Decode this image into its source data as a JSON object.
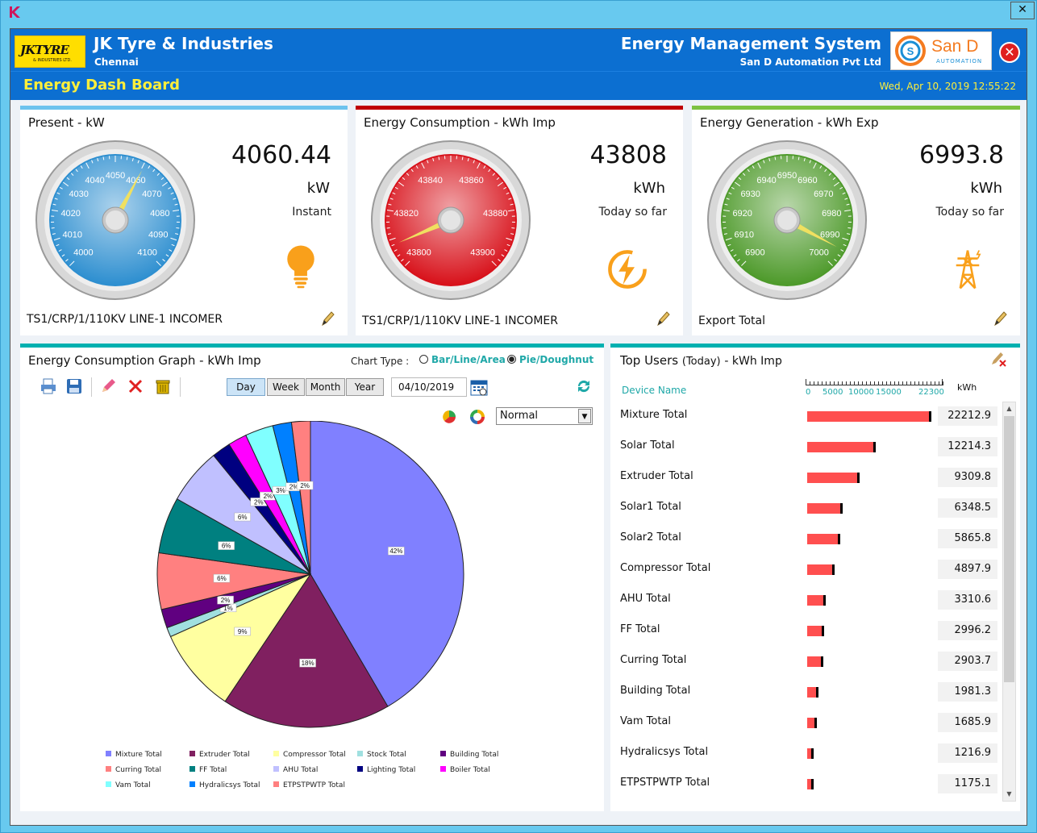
{
  "window": {
    "app_icon": "k-logo-icon",
    "close_label": "✕"
  },
  "header": {
    "company": "JK Tyre & Industries",
    "city": "Chennai",
    "logo_text": "JKTYRE",
    "logo_sub": "& INDUSTRIES LTD.",
    "system_title": "Energy Management System",
    "vendor": "San D Automation Pvt Ltd",
    "vendor_logo_text": "San D",
    "vendor_logo_sub": "AUTOMATION",
    "dashboard_title": "Energy Dash Board",
    "datetime": "Wed, Apr 10, 2019 12:55:22"
  },
  "cards": [
    {
      "title": "Present - kW",
      "value": "4060.44",
      "unit": "kW",
      "note": "Instant",
      "footer": "TS1/CRP/1/110KV LINE-1 INCOMER",
      "icon": "lightbulb-icon",
      "accent": "#6cc3ee",
      "gauge": {
        "color": "#2e8fd0",
        "min": 4000,
        "max": 4100,
        "ticks": [
          "4000",
          "4010",
          "4020",
          "4030",
          "4040",
          "4050",
          "4060",
          "4070",
          "4080",
          "4090",
          "4100"
        ],
        "value": 4060.44
      }
    },
    {
      "title": "Energy Consumption - kWh Imp",
      "value": "43808",
      "unit": "kWh",
      "note": "Today so far",
      "footer": "TS1/CRP/1/110KV LINE-1 INCOMER",
      "icon": "lightning-icon",
      "accent": "#c00000",
      "gauge": {
        "color": "#d8121b",
        "min": 43800,
        "max": 43900,
        "ticks": [
          "43800",
          "43820",
          "43840",
          "43860",
          "43880",
          "43900"
        ],
        "value": 43808
      }
    },
    {
      "title": "Energy Generation - kWh Exp",
      "value": "6993.8",
      "unit": "kWh",
      "note": "Today so far",
      "footer": "Export Total",
      "icon": "transmission-tower-icon",
      "accent": "#7dc242",
      "gauge": {
        "color": "#4e9a2b",
        "min": 6900,
        "max": 7000,
        "ticks": [
          "6900",
          "6910",
          "6920",
          "6930",
          "6940",
          "6950",
          "6960",
          "6970",
          "6980",
          "6990",
          "7000"
        ],
        "value": 6993.8
      }
    }
  ],
  "graph": {
    "title": "Energy Consumption Graph - kWh Imp",
    "chart_type_label": "Chart Type :",
    "option_bar": "Bar/Line/Area",
    "option_pie": "Pie/Doughnut",
    "ranges": [
      "Day",
      "Week",
      "Month",
      "Year"
    ],
    "selected_range": "Day",
    "date": "04/10/2019",
    "mode": "Normal"
  },
  "chart_data": {
    "type": "pie",
    "title": "",
    "series": [
      {
        "name": "Mixture Total",
        "value": 42,
        "label": "42%",
        "color": "#8080ff"
      },
      {
        "name": "Extruder Total",
        "value": 18,
        "label": "18%",
        "color": "#802060"
      },
      {
        "name": "Compressor Total",
        "value": 9,
        "label": "9%",
        "color": "#ffffa0"
      },
      {
        "name": "Stock Total",
        "value": 1,
        "label": "1%",
        "color": "#a0e0e0"
      },
      {
        "name": "Building Total",
        "value": 2,
        "label": "2%",
        "color": "#600080"
      },
      {
        "name": "Curring Total",
        "value": 6,
        "label": "6%",
        "color": "#ff8080"
      },
      {
        "name": "FF Total",
        "value": 6,
        "label": "6%",
        "color": "#008080"
      },
      {
        "name": "AHU Total",
        "value": 6,
        "label": "6%",
        "color": "#c0c0ff"
      },
      {
        "name": "Lighting Total",
        "value": 2,
        "label": "2%",
        "color": "#000080"
      },
      {
        "name": "Boiler Total",
        "value": 2,
        "label": "2%",
        "color": "#ff00ff"
      },
      {
        "name": "Vam Total",
        "value": 3,
        "label": "3%",
        "color": "#80ffff"
      },
      {
        "name": "Hydralicsys Total",
        "value": 2,
        "label": "2%",
        "color": "#0080ff"
      },
      {
        "name": "ETPSTPWTP Total",
        "value": 2,
        "label": "2%",
        "color": "#ff8080"
      }
    ]
  },
  "top_users": {
    "title": "Top Users",
    "today": "(Today)",
    "unit_title": "- kWh Imp",
    "col_device": "Device Name",
    "col_kwh": "kWh",
    "scale": [
      "0",
      "5000",
      "10000",
      "15000",
      "22300"
    ],
    "max": 22300,
    "rows": [
      {
        "name": "Mixture Total",
        "value": 22212.9,
        "label": "22212.9"
      },
      {
        "name": "Solar Total",
        "value": 12214.3,
        "label": "12214.3"
      },
      {
        "name": "Extruder Total",
        "value": 9309.8,
        "label": "9309.8"
      },
      {
        "name": "Solar1 Total",
        "value": 6348.5,
        "label": "6348.5"
      },
      {
        "name": "Solar2 Total",
        "value": 5865.8,
        "label": "5865.8"
      },
      {
        "name": "Compressor Total",
        "value": 4897.9,
        "label": "4897.9"
      },
      {
        "name": "AHU Total",
        "value": 3310.6,
        "label": "3310.6"
      },
      {
        "name": "FF Total",
        "value": 2996.2,
        "label": "2996.2"
      },
      {
        "name": "Curring Total",
        "value": 2903.7,
        "label": "2903.7"
      },
      {
        "name": "Building Total",
        "value": 1981.3,
        "label": "1981.3"
      },
      {
        "name": "Vam Total",
        "value": 1685.9,
        "label": "1685.9"
      },
      {
        "name": "Hydralicsys Total",
        "value": 1216.9,
        "label": "1216.9"
      },
      {
        "name": "ETPSTPWTP Total",
        "value": 1175.1,
        "label": "1175.1"
      }
    ]
  }
}
